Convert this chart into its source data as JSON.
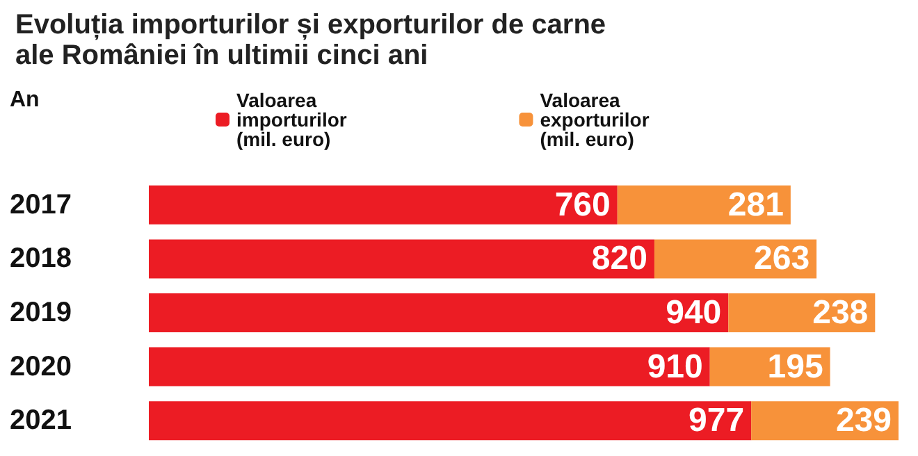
{
  "chart_data": {
    "type": "bar",
    "orientation": "horizontal",
    "stacked": true,
    "title": "Evoluția importurilor și exporturilor de carne ale României în ultimii cinci ani",
    "ylabel": "An",
    "categories": [
      "2017",
      "2018",
      "2019",
      "2020",
      "2021"
    ],
    "series": [
      {
        "name": "Valoarea importurilor (mil. euro)",
        "color": "#ec1c24",
        "values": [
          760,
          820,
          940,
          910,
          977
        ]
      },
      {
        "name": "Valoarea exporturilor (mil. euro)",
        "color": "#f7923a",
        "values": [
          281,
          263,
          238,
          195,
          239
        ]
      }
    ],
    "data_labels": true,
    "legend": "top"
  }
}
